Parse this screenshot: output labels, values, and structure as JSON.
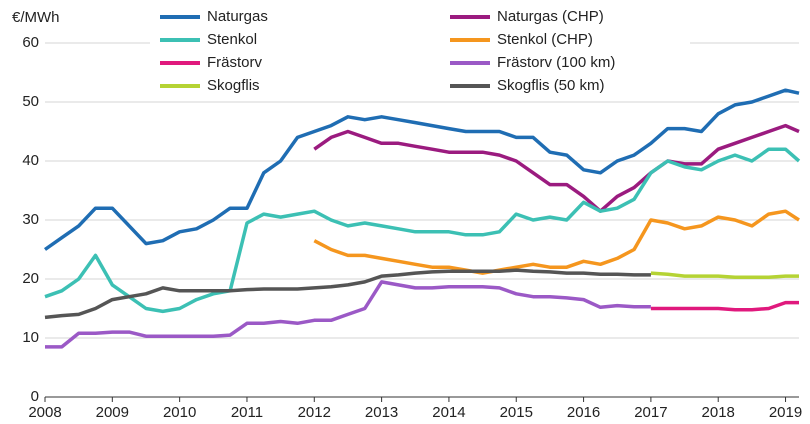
{
  "chart_data": {
    "type": "line",
    "y_label": "€/MWh",
    "x": [
      2008,
      2008.25,
      2008.5,
      2008.75,
      2009,
      2009.25,
      2009.5,
      2009.75,
      2010,
      2010.25,
      2010.5,
      2010.75,
      2011,
      2011.25,
      2011.5,
      2011.75,
      2012,
      2012.25,
      2012.5,
      2012.75,
      2013,
      2013.25,
      2013.5,
      2013.75,
      2014,
      2014.25,
      2014.5,
      2014.75,
      2015,
      2015.25,
      2015.5,
      2015.75,
      2016,
      2016.25,
      2016.5,
      2016.75,
      2017,
      2017.25,
      2017.5,
      2017.75,
      2018,
      2018.25,
      2018.5,
      2018.75,
      2019,
      2019.2
    ],
    "xlim": [
      2008,
      2019.2
    ],
    "xticks": [
      2008,
      2009,
      2010,
      2011,
      2012,
      2013,
      2014,
      2015,
      2016,
      2017,
      2018,
      2019
    ],
    "ylim": [
      0,
      60
    ],
    "yticks": [
      0,
      10,
      20,
      30,
      40,
      50,
      60
    ],
    "grid": true,
    "legend": "top",
    "series": [
      {
        "name": "Naturgas",
        "color": "#1f6db3",
        "values": [
          25,
          27,
          29,
          32,
          32,
          29,
          26,
          26.5,
          28,
          28.5,
          30,
          32,
          32,
          38,
          40,
          44,
          45,
          46,
          47.5,
          47,
          47.5,
          47,
          46.5,
          46,
          45.5,
          45,
          45,
          45,
          44,
          44,
          41.5,
          41,
          38.5,
          38,
          40,
          41,
          43,
          45.5,
          45.5,
          45,
          48,
          49.5,
          50,
          51,
          52,
          51.5
        ]
      },
      {
        "name": "Naturgas (CHP)",
        "color": "#9b1b7f",
        "values": [
          null,
          null,
          null,
          null,
          null,
          null,
          null,
          null,
          null,
          null,
          null,
          null,
          null,
          null,
          null,
          null,
          42,
          44,
          45,
          44,
          43,
          43,
          42.5,
          42,
          41.5,
          41.5,
          41.5,
          41,
          40,
          38,
          36,
          36,
          34,
          31.5,
          34,
          35.5,
          38,
          40,
          39.5,
          39.5,
          42,
          43,
          44,
          45,
          46,
          45
        ]
      },
      {
        "name": "Stenkol",
        "color": "#3cc0b4",
        "values": [
          17,
          18,
          20,
          24,
          19,
          17,
          15,
          14.5,
          15,
          16.5,
          17.5,
          18,
          29.5,
          31,
          30.5,
          31,
          31.5,
          30,
          29,
          29.5,
          29,
          28.5,
          28,
          28,
          28,
          27.5,
          27.5,
          28,
          31,
          30,
          30.5,
          30,
          33,
          31.5,
          32,
          33.5,
          38,
          40,
          39,
          38.5,
          40,
          41,
          40,
          42,
          42,
          40
        ]
      },
      {
        "name": "Stenkol (CHP)",
        "color": "#f5961e",
        "values": [
          null,
          null,
          null,
          null,
          null,
          null,
          null,
          null,
          null,
          null,
          null,
          null,
          null,
          null,
          null,
          null,
          26.5,
          25,
          24,
          24,
          23.5,
          23,
          22.5,
          22,
          22,
          21.5,
          21,
          21.5,
          22,
          22.5,
          22,
          22,
          23,
          22.5,
          23.5,
          25,
          30,
          29.5,
          28.5,
          29,
          30.5,
          30,
          29,
          31,
          31.5,
          30
        ]
      },
      {
        "name": "Frästorv",
        "color": "#e0197d",
        "values": [
          null,
          null,
          null,
          null,
          null,
          null,
          null,
          null,
          null,
          null,
          null,
          null,
          null,
          null,
          null,
          null,
          null,
          null,
          null,
          null,
          null,
          null,
          null,
          null,
          null,
          null,
          null,
          null,
          null,
          null,
          null,
          null,
          null,
          null,
          null,
          null,
          15,
          15,
          15,
          15,
          15,
          14.8,
          14.8,
          15,
          16,
          16
        ]
      },
      {
        "name": "Frästorv (100 km)",
        "color": "#9b59c6",
        "values": [
          8.5,
          8.5,
          10.8,
          10.8,
          11,
          11,
          10.3,
          10.3,
          10.3,
          10.3,
          10.3,
          10.5,
          12.5,
          12.5,
          12.8,
          12.5,
          13,
          13,
          14,
          15,
          19.5,
          19,
          18.5,
          18.5,
          18.7,
          18.7,
          18.7,
          18.5,
          17.5,
          17,
          17,
          16.8,
          16.5,
          15.2,
          15.5,
          15.3,
          15.3,
          null,
          null,
          null,
          null,
          null,
          null,
          null,
          null,
          null
        ]
      },
      {
        "name": "Skogflis",
        "color": "#b5d334",
        "values": [
          null,
          null,
          null,
          null,
          null,
          null,
          null,
          null,
          null,
          null,
          null,
          null,
          null,
          null,
          null,
          null,
          null,
          null,
          null,
          null,
          null,
          null,
          null,
          null,
          null,
          null,
          null,
          null,
          null,
          null,
          null,
          null,
          null,
          null,
          null,
          null,
          21,
          20.8,
          20.5,
          20.5,
          20.5,
          20.3,
          20.3,
          20.3,
          20.5,
          20.5
        ]
      },
      {
        "name": "Skogflis (50 km)",
        "color": "#555555",
        "values": [
          13.5,
          13.8,
          14,
          15,
          16.5,
          17,
          17.5,
          18.5,
          18,
          18,
          18,
          18,
          18.2,
          18.3,
          18.3,
          18.3,
          18.5,
          18.7,
          19,
          19.5,
          20.5,
          20.7,
          21,
          21.2,
          21.3,
          21.3,
          21.3,
          21.3,
          21.5,
          21.3,
          21.2,
          21,
          21,
          20.8,
          20.8,
          20.7,
          20.7,
          null,
          null,
          null,
          null,
          null,
          null,
          null,
          null,
          null
        ]
      }
    ]
  }
}
